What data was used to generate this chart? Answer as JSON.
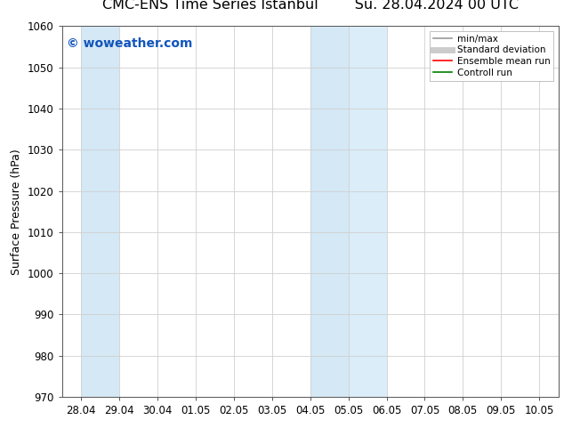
{
  "title_left": "CMC-ENS Time Series Istanbul",
  "title_right": "Su. 28.04.2024 00 UTC",
  "ylabel": "Surface Pressure (hPa)",
  "ylim": [
    970,
    1060
  ],
  "yticks": [
    970,
    980,
    990,
    1000,
    1010,
    1020,
    1030,
    1040,
    1050,
    1060
  ],
  "xtick_labels": [
    "28.04",
    "29.04",
    "30.04",
    "01.05",
    "02.05",
    "03.05",
    "04.05",
    "05.05",
    "06.05",
    "07.05",
    "08.05",
    "09.05",
    "10.05"
  ],
  "shaded_regions": [
    [
      0,
      1,
      "#d4e8f5"
    ],
    [
      6,
      7,
      "#d4e8f5"
    ],
    [
      7,
      8,
      "#daedf8"
    ]
  ],
  "watermark": "© woweather.com",
  "watermark_color": "#1155bb",
  "watermark_fontsize": 10,
  "legend_items": [
    {
      "label": "min/max",
      "color": "#999999",
      "lw": 1.2,
      "style": "solid"
    },
    {
      "label": "Standard deviation",
      "color": "#cccccc",
      "lw": 5,
      "style": "solid"
    },
    {
      "label": "Ensemble mean run",
      "color": "red",
      "lw": 1.2,
      "style": "solid"
    },
    {
      "label": "Controll run",
      "color": "green",
      "lw": 1.2,
      "style": "solid"
    }
  ],
  "background_color": "#ffffff",
  "grid_color": "#d0d0d0",
  "title_fontsize": 11.5,
  "ylabel_fontsize": 9,
  "tick_fontsize": 8.5
}
